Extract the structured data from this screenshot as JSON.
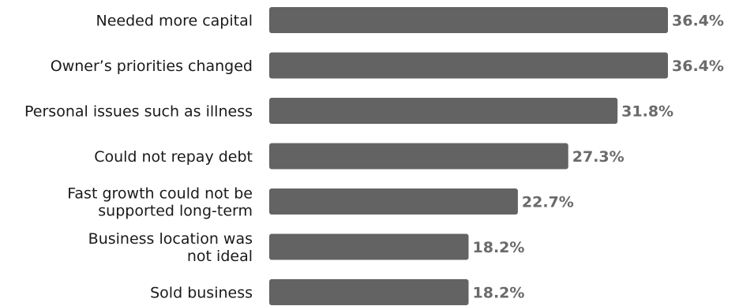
{
  "chart_data": {
    "type": "bar",
    "orientation": "horizontal",
    "categories": [
      [
        "Needed more capital"
      ],
      [
        "Owner’s priorities changed"
      ],
      [
        "Personal issues such as illness"
      ],
      [
        "Could not repay debt"
      ],
      [
        "Fast growth could not be",
        "supported long-term"
      ],
      [
        "Business location was",
        "not ideal"
      ],
      [
        "Sold business"
      ]
    ],
    "values": [
      36.4,
      36.4,
      31.8,
      27.3,
      22.7,
      18.2,
      18.2
    ],
    "value_labels": [
      "36.4%",
      "36.4%",
      "31.8%",
      "27.3%",
      "22.7%",
      "18.2%",
      "18.2%"
    ],
    "xlim": [
      0,
      36.4
    ],
    "grid": false,
    "legend": "none",
    "colors": {
      "bar": "#636363",
      "value_label": "#6a6a6a",
      "category_label": "#1a1a1a"
    }
  }
}
